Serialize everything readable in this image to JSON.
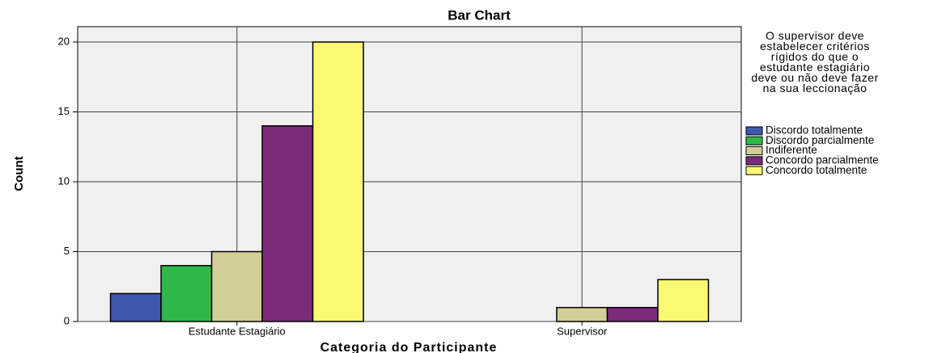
{
  "chart_data": {
    "type": "bar",
    "title": "Bar Chart",
    "x_label": "Categoria do Participante",
    "y_label": "Count",
    "legend_title": "O supervisor deve estabelecer critérios rígidos do que o estudante estagiário deve ou não deve fazer na sua leccionação",
    "categories": [
      "Estudante Estagiário",
      "Supervisor"
    ],
    "series": [
      {
        "name": "Discordo totalmente",
        "color": "#3e58ac",
        "values": [
          2,
          null
        ]
      },
      {
        "name": "Discordo parcialmente",
        "color": "#2eb848",
        "values": [
          4,
          null
        ]
      },
      {
        "name": "Indiferente",
        "color": "#d3ce97",
        "values": [
          5,
          1
        ]
      },
      {
        "name": "Concordo parcialmente",
        "color": "#7b2a7a",
        "values": [
          14,
          1
        ]
      },
      {
        "name": "Concordo totalmente",
        "color": "#fbf873",
        "values": [
          20,
          3
        ]
      }
    ],
    "ylim": [
      0,
      21.1
    ],
    "yticks": [
      0,
      5,
      10,
      15,
      20
    ],
    "grid": true,
    "legend": "right"
  }
}
